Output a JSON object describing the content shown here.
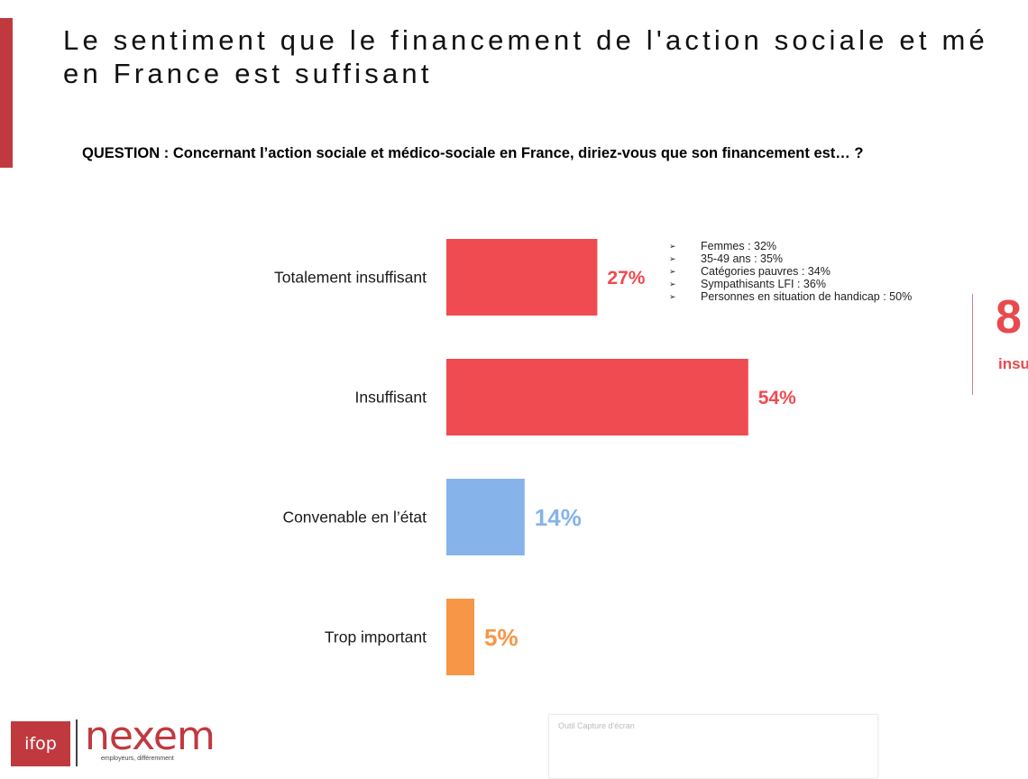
{
  "header": {
    "title_line1": "Le sentiment que le financement de l'action sociale et mé",
    "title_line2": "en France est suffisant",
    "accent_color": "#c0393f"
  },
  "question": "QUESTION : Concernant l’action sociale et médico-sociale en France, diriez-vous que son financement est… ?",
  "chart_data": {
    "type": "bar",
    "orientation": "horizontal",
    "categories": [
      "Totalement insuffisant",
      "Insuffisant",
      "Convenable en l’état",
      "Trop important"
    ],
    "values": [
      27,
      54,
      14,
      5
    ],
    "value_labels": [
      "27%",
      "54%",
      "14%",
      "5%"
    ],
    "colors": [
      "#ef4b50",
      "#ef4b50",
      "#86b3ea",
      "#f79646"
    ],
    "xlim": [
      0,
      100
    ],
    "grid": false,
    "legend": "none"
  },
  "breakdown": [
    "Femmes : 32%",
    "35-49 ans : 35%",
    "Catégories pauvres : 34%",
    "Sympathisants LFI : 36%",
    "Personnes en situation de handicap : 50%"
  ],
  "total": {
    "value_partial": "8",
    "label_partial": "insu"
  },
  "logos": {
    "ifop": "ifop",
    "nexem": "nexem",
    "nexem_tagline": "employeurs, différemment"
  },
  "overlay": {
    "title": "Outil Capture d'écran"
  }
}
